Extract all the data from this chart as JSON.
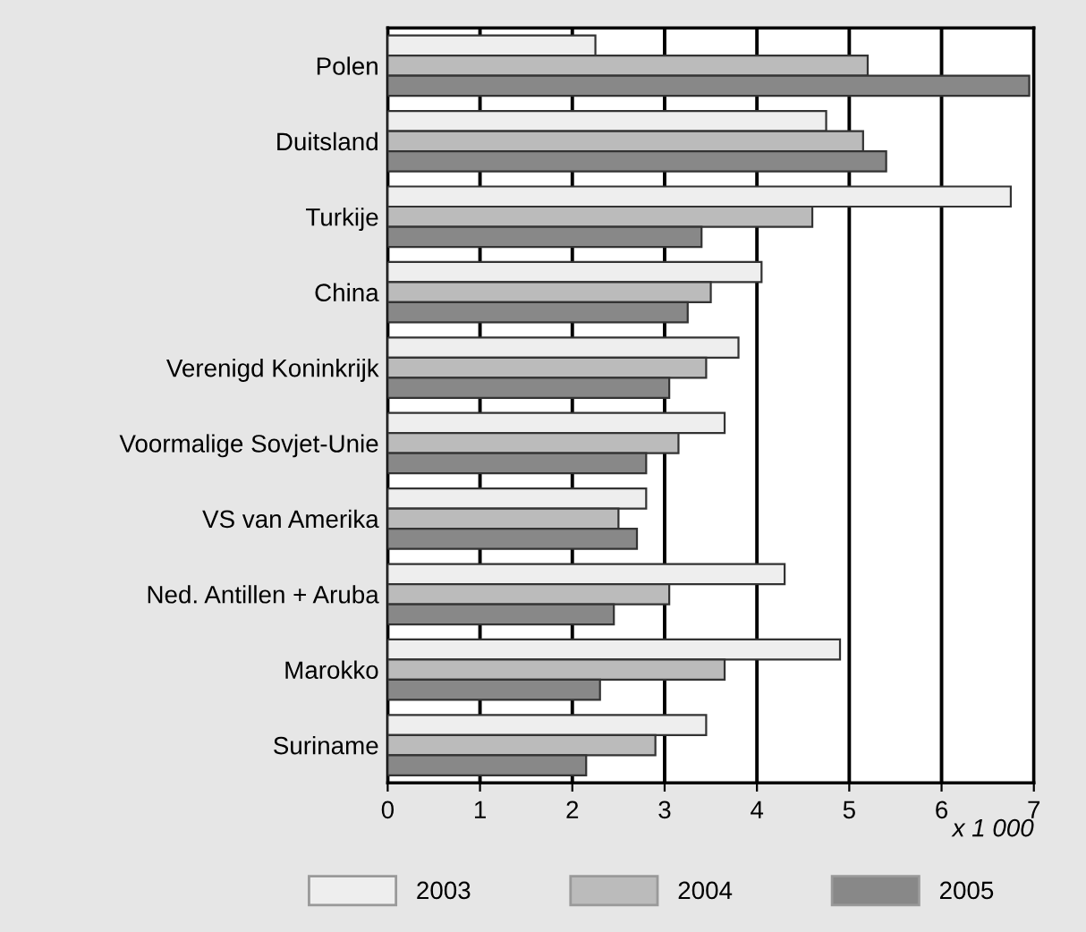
{
  "chart_data": {
    "type": "bar",
    "orientation": "horizontal",
    "categories": [
      "Polen",
      "Duitsland",
      "Turkije",
      "China",
      "Verenigd Koninkrijk",
      "Voormalige Sovjet-Unie",
      "VS van Amerika",
      "Ned. Antillen + Aruba",
      "Marokko",
      "Suriname"
    ],
    "series": [
      {
        "name": "2003",
        "color": "#eeeeee",
        "values": [
          2.25,
          4.75,
          6.75,
          4.05,
          3.8,
          3.65,
          2.8,
          4.3,
          4.9,
          3.45
        ]
      },
      {
        "name": "2004",
        "color": "#bbbbbb",
        "values": [
          5.2,
          5.15,
          4.6,
          3.5,
          3.45,
          3.15,
          2.5,
          3.05,
          3.65,
          2.9
        ]
      },
      {
        "name": "2005",
        "color": "#888888",
        "values": [
          6.95,
          5.4,
          3.4,
          3.25,
          3.05,
          2.8,
          2.7,
          2.45,
          2.3,
          2.15
        ]
      }
    ],
    "xlim": [
      0,
      7
    ],
    "xticks": [
      0,
      1,
      2,
      3,
      4,
      5,
      6,
      7
    ],
    "xlabel": "x 1 000",
    "grid": "x",
    "legend": "bottom"
  }
}
